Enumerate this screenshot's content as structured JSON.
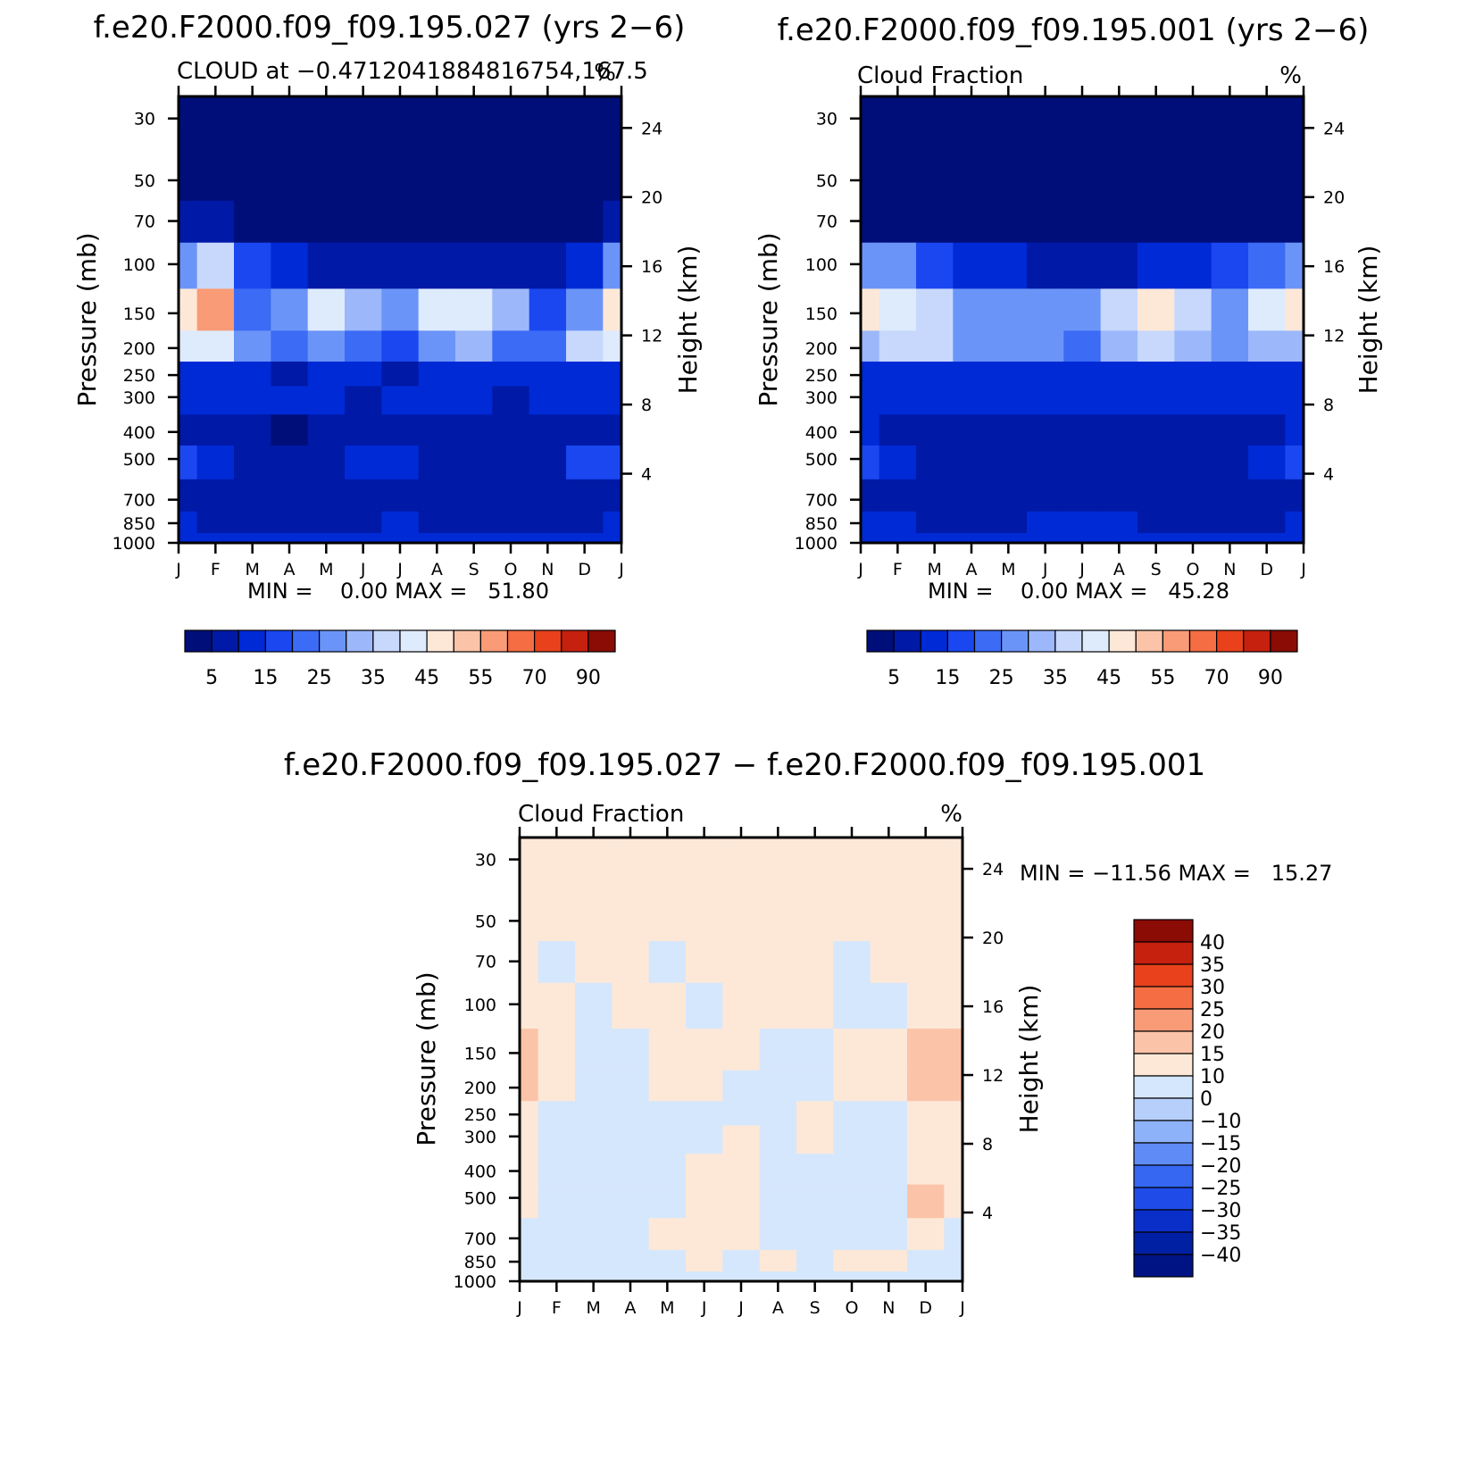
{
  "chart_data": [
    {
      "type": "heatmap",
      "title": "f.e20.F2000.f09_f09.195.027 (yrs 2−6)",
      "subtitle_left": "CLOUD at −0.4712041884816754,167.5",
      "subtitle_right": "%",
      "ylabel": "Pressure (mb)",
      "ylabel_right": "Height (km)",
      "x_ticks": [
        "J",
        "F",
        "M",
        "A",
        "M",
        "J",
        "J",
        "A",
        "S",
        "O",
        "N",
        "D",
        "J"
      ],
      "pressure_ticks": [
        30,
        50,
        70,
        100,
        150,
        200,
        250,
        300,
        400,
        500,
        700,
        850,
        1000
      ],
      "height_ticks": [
        24,
        20,
        16,
        12,
        8,
        4
      ],
      "ylim": [
        25,
        1000
      ],
      "stats": "MIN =    0.00 MAX =   51.80",
      "min": 0.0,
      "max": 51.8,
      "colorbar": {
        "labels": [
          "5",
          "15",
          "25",
          "35",
          "45",
          "55",
          "70",
          "90"
        ],
        "colors": [
          "#000e7a",
          "#0019a6",
          "#002ad6",
          "#1a47f0",
          "#3c6bf5",
          "#6b94f8",
          "#9cb8fa",
          "#c7d8fc",
          "#deebfd",
          "#fde8d8",
          "#fbc4a8",
          "#f89b76",
          "#f46d43",
          "#e8411b",
          "#c6200f",
          "#8a0c05"
        ]
      },
      "z": [
        [
          0,
          0,
          0,
          0,
          0,
          0,
          0,
          0,
          0,
          0,
          0,
          0,
          0
        ],
        [
          0,
          0,
          0,
          0,
          0,
          0,
          0,
          0,
          0,
          0,
          0,
          0,
          0
        ],
        [
          2,
          2,
          1,
          0,
          0,
          0,
          0,
          0,
          0,
          0,
          0,
          1,
          2
        ],
        [
          24,
          30,
          12,
          6,
          4,
          2,
          2,
          3,
          4,
          2,
          4,
          8,
          24
        ],
        [
          40,
          50,
          18,
          24,
          36,
          26,
          22,
          36,
          38,
          26,
          10,
          24,
          40
        ],
        [
          35,
          38,
          20,
          16,
          22,
          16,
          14,
          24,
          28,
          16,
          16,
          30,
          35
        ],
        [
          6,
          8,
          6,
          4,
          6,
          5,
          4,
          5,
          6,
          5,
          5,
          6,
          6
        ],
        [
          5,
          6,
          5,
          5,
          5,
          4,
          5,
          5,
          5,
          4,
          5,
          5,
          5
        ],
        [
          4,
          3,
          4,
          1,
          2,
          3,
          4,
          3,
          2,
          4,
          4,
          3,
          4
        ],
        [
          10,
          8,
          4,
          4,
          4,
          5,
          5,
          4,
          4,
          4,
          4,
          10,
          10
        ],
        [
          4,
          4,
          3,
          3,
          3,
          3,
          3,
          3,
          3,
          3,
          3,
          3,
          4
        ],
        [
          5,
          4,
          4,
          3,
          3,
          4,
          5,
          4,
          4,
          3,
          4,
          4,
          5
        ],
        [
          6,
          6,
          6,
          6,
          6,
          6,
          6,
          6,
          6,
          6,
          6,
          6,
          6
        ]
      ]
    },
    {
      "type": "heatmap",
      "title": "f.e20.F2000.f09_f09.195.001 (yrs 2−6)",
      "subtitle_left": "Cloud Fraction",
      "subtitle_right": "%",
      "ylabel": "Pressure (mb)",
      "ylabel_right": "Height (km)",
      "x_ticks": [
        "J",
        "F",
        "M",
        "A",
        "M",
        "J",
        "J",
        "A",
        "S",
        "O",
        "N",
        "D",
        "J"
      ],
      "pressure_ticks": [
        30,
        50,
        70,
        100,
        150,
        200,
        250,
        300,
        400,
        500,
        700,
        850,
        1000
      ],
      "height_ticks": [
        24,
        20,
        16,
        12,
        8,
        4
      ],
      "ylim": [
        25,
        1000
      ],
      "stats": "MIN =    0.00 MAX =   45.28",
      "min": 0.0,
      "max": 45.28,
      "colorbar": {
        "labels": [
          "5",
          "15",
          "25",
          "35",
          "45",
          "55",
          "70",
          "90"
        ],
        "colors": [
          "#000e7a",
          "#0019a6",
          "#002ad6",
          "#1a47f0",
          "#3c6bf5",
          "#6b94f8",
          "#9cb8fa",
          "#c7d8fc",
          "#deebfd",
          "#fde8d8",
          "#fbc4a8",
          "#f89b76",
          "#f46d43",
          "#e8411b",
          "#c6200f",
          "#8a0c05"
        ]
      },
      "z": [
        [
          0,
          0,
          0,
          0,
          0,
          0,
          0,
          0,
          0,
          0,
          0,
          0,
          0
        ],
        [
          0,
          0,
          0,
          0,
          0,
          0,
          0,
          0,
          0,
          0,
          0,
          0,
          0
        ],
        [
          1,
          1,
          1,
          0,
          0,
          0,
          0,
          0,
          0,
          0,
          0,
          1,
          1
        ],
        [
          20,
          20,
          12,
          8,
          6,
          4,
          3,
          4,
          6,
          8,
          12,
          18,
          20
        ],
        [
          40,
          38,
          30,
          20,
          20,
          20,
          20,
          30,
          40,
          30,
          22,
          36,
          40
        ],
        [
          28,
          30,
          32,
          22,
          20,
          20,
          18,
          26,
          34,
          26,
          20,
          28,
          28
        ],
        [
          8,
          8,
          6,
          6,
          6,
          6,
          6,
          6,
          7,
          6,
          6,
          8,
          8
        ],
        [
          6,
          5,
          5,
          5,
          5,
          5,
          5,
          5,
          5,
          5,
          5,
          5,
          6
        ],
        [
          5,
          4,
          4,
          3,
          4,
          2,
          4,
          4,
          4,
          3,
          4,
          4,
          5
        ],
        [
          10,
          9,
          4,
          4,
          4,
          4,
          4,
          4,
          4,
          4,
          4,
          9,
          10
        ],
        [
          4,
          4,
          3,
          3,
          3,
          3,
          3,
          3,
          3,
          3,
          3,
          3,
          4
        ],
        [
          5,
          5,
          4,
          4,
          4,
          5,
          5,
          5,
          4,
          4,
          4,
          4,
          5
        ],
        [
          6,
          6,
          6,
          6,
          6,
          6,
          6,
          6,
          6,
          6,
          6,
          6,
          6
        ]
      ]
    },
    {
      "type": "heatmap",
      "title": "f.e20.F2000.f09_f09.195.027 − f.e20.F2000.f09_f09.195.001",
      "subtitle_left": "Cloud Fraction",
      "subtitle_right": "%",
      "ylabel": "Pressure (mb)",
      "ylabel_right": "Height (km)",
      "x_ticks": [
        "J",
        "F",
        "M",
        "A",
        "M",
        "J",
        "J",
        "A",
        "S",
        "O",
        "N",
        "D",
        "J"
      ],
      "pressure_ticks": [
        30,
        50,
        70,
        100,
        150,
        200,
        250,
        300,
        400,
        500,
        700,
        850,
        1000
      ],
      "height_ticks": [
        24,
        20,
        16,
        12,
        8,
        4
      ],
      "ylim": [
        25,
        1000
      ],
      "stats": "MIN = −11.56 MAX =   15.27",
      "min": -11.56,
      "max": 15.27,
      "colorbar": {
        "labels": [
          "40",
          "35",
          "30",
          "25",
          "20",
          "15",
          "10",
          "0",
          "−10",
          "−15",
          "−20",
          "−25",
          "−30",
          "−35",
          "−40"
        ],
        "colors": [
          "#8a0c05",
          "#c6200f",
          "#e8411b",
          "#f46d43",
          "#f89b76",
          "#fbc4a8",
          "#fde8d8",
          "#d5e7fc",
          "#b7cffb",
          "#8eb2f9",
          "#5f8bf6",
          "#3667f2",
          "#1f4be8",
          "#0a2fc8",
          "#0020a3",
          "#001385"
        ]
      },
      "z": [
        [
          1,
          1,
          1,
          1,
          1,
          1,
          1,
          1,
          1,
          1,
          1,
          1,
          1
        ],
        [
          1,
          1,
          1,
          1,
          1,
          1,
          1,
          1,
          1,
          1,
          1,
          1,
          1
        ],
        [
          1,
          -2,
          1,
          1,
          -2,
          1,
          1,
          1,
          1,
          -2,
          1,
          1,
          1
        ],
        [
          1,
          1,
          -2,
          1,
          3,
          -2,
          1,
          1,
          1,
          -2,
          -2,
          1,
          1
        ],
        [
          12,
          3,
          -2,
          -2,
          1,
          1,
          1,
          -2,
          -2,
          1,
          1,
          12,
          12
        ],
        [
          12,
          3,
          -2,
          -3,
          1,
          1,
          -2,
          -2,
          -2,
          1,
          2,
          12,
          12
        ],
        [
          1,
          -2,
          -2,
          -2,
          -2,
          -2,
          -2,
          -2,
          1,
          -2,
          -2,
          1,
          1
        ],
        [
          1,
          -2,
          -2,
          -2,
          -2,
          -2,
          1,
          -2,
          1,
          -2,
          -2,
          1,
          1
        ],
        [
          1,
          -2,
          -2,
          -2,
          -2,
          1,
          1,
          -2,
          -2,
          -2,
          -2,
          1,
          1
        ],
        [
          1,
          -2,
          -2,
          -2,
          -2,
          1,
          1,
          -2,
          -2,
          -2,
          -2,
          12,
          1
        ],
        [
          -2,
          -2,
          -2,
          -2,
          1,
          1,
          1,
          -2,
          -2,
          -2,
          -2,
          1,
          -2
        ],
        [
          -2,
          -2,
          -2,
          -2,
          -2,
          1,
          -2,
          1,
          -2,
          1,
          1,
          -2,
          -2
        ],
        [
          -2,
          -2,
          -2,
          -2,
          -2,
          -2,
          -2,
          -2,
          -2,
          -2,
          -2,
          -2,
          -2
        ]
      ]
    }
  ]
}
